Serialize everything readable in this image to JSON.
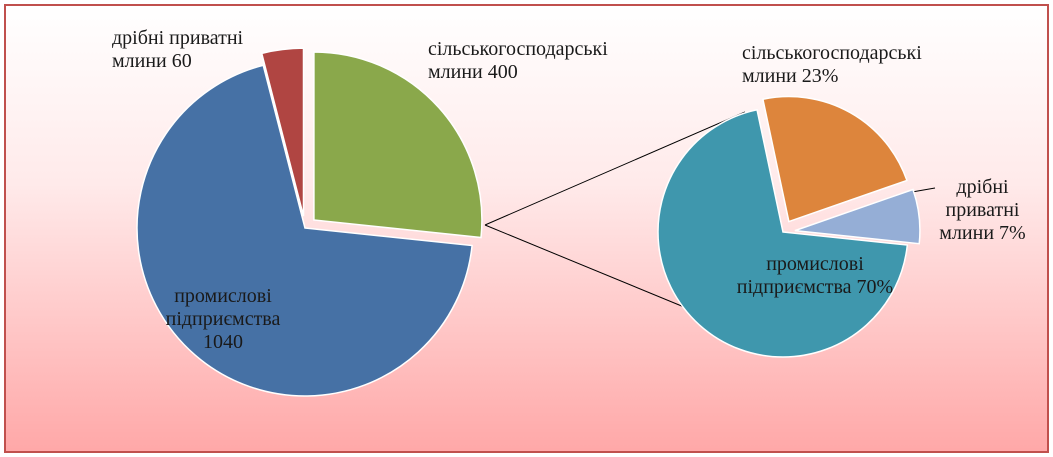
{
  "chart_data": [
    {
      "type": "pie",
      "categories": [
        "сільськогосподарські млини",
        "промислові підприємства",
        "дрібні приватні млини"
      ],
      "values": [
        400,
        1040,
        60
      ],
      "colors": [
        "#8aa84b",
        "#4671a5",
        "#b04542"
      ]
    },
    {
      "type": "pie",
      "categories": [
        "сільськогосподарські млини",
        "дрібні приватні млини",
        "промислові підприємства"
      ],
      "values": [
        23,
        7,
        70
      ],
      "value_labels": [
        "23%",
        "7%",
        "70%"
      ],
      "colors": [
        "#dd853c",
        "#95aed6",
        "#3f97ad"
      ]
    }
  ]
}
